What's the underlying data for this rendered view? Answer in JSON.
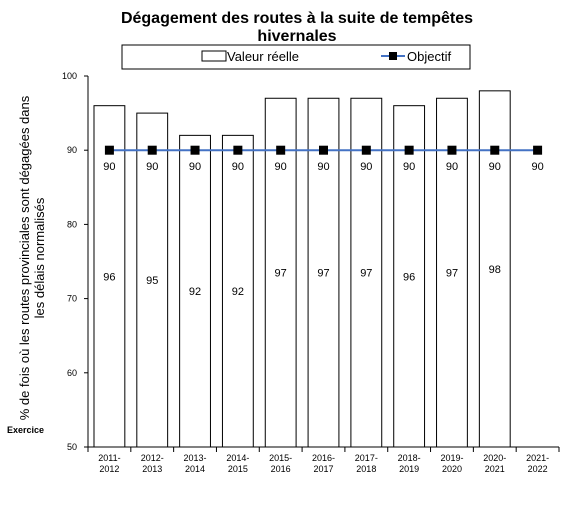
{
  "chart_data": {
    "type": "bar",
    "title_lines": [
      "Dégagement des routes à la suite de tempêtes",
      "hivernales"
    ],
    "ylabel_lines": [
      "% de fois où les routes provinciales sont dégagées dans",
      "les délais normalisés"
    ],
    "xlabel": "Exercice",
    "categories": [
      [
        "2011-",
        "2012"
      ],
      [
        "2012-",
        "2013"
      ],
      [
        "2013-",
        "2014"
      ],
      [
        "2014-",
        "2015"
      ],
      [
        "2015-",
        "2016"
      ],
      [
        "2016-",
        "2017"
      ],
      [
        "2017-",
        "2018"
      ],
      [
        "2018-",
        "2019"
      ],
      [
        "2019-",
        "2020"
      ],
      [
        "2020-",
        "2021"
      ],
      [
        "2021-",
        "2022"
      ]
    ],
    "series": [
      {
        "name": "Valeur réelle",
        "type": "bar",
        "values": [
          96,
          95,
          92,
          92,
          97,
          97,
          97,
          96,
          97,
          98,
          null
        ],
        "labels": [
          "96",
          "95",
          "92",
          "92",
          "97",
          "97",
          "97",
          "96",
          "97",
          "98",
          ""
        ]
      },
      {
        "name": "Objectif",
        "type": "line",
        "values": [
          90,
          90,
          90,
          90,
          90,
          90,
          90,
          90,
          90,
          90,
          90
        ],
        "labels": [
          "90",
          "90",
          "90",
          "90",
          "90",
          "90",
          "90",
          "90",
          "90",
          "90",
          "90"
        ]
      }
    ],
    "yticks": [
      "50",
      "60",
      "70",
      "80",
      "90",
      "100"
    ],
    "ylim": [
      50,
      100
    ],
    "legend": "top",
    "grid": false,
    "colors": {
      "bar_fill": "#ffffff",
      "bar_stroke": "#000000",
      "line": "#4472c4",
      "marker": "#000000"
    }
  }
}
